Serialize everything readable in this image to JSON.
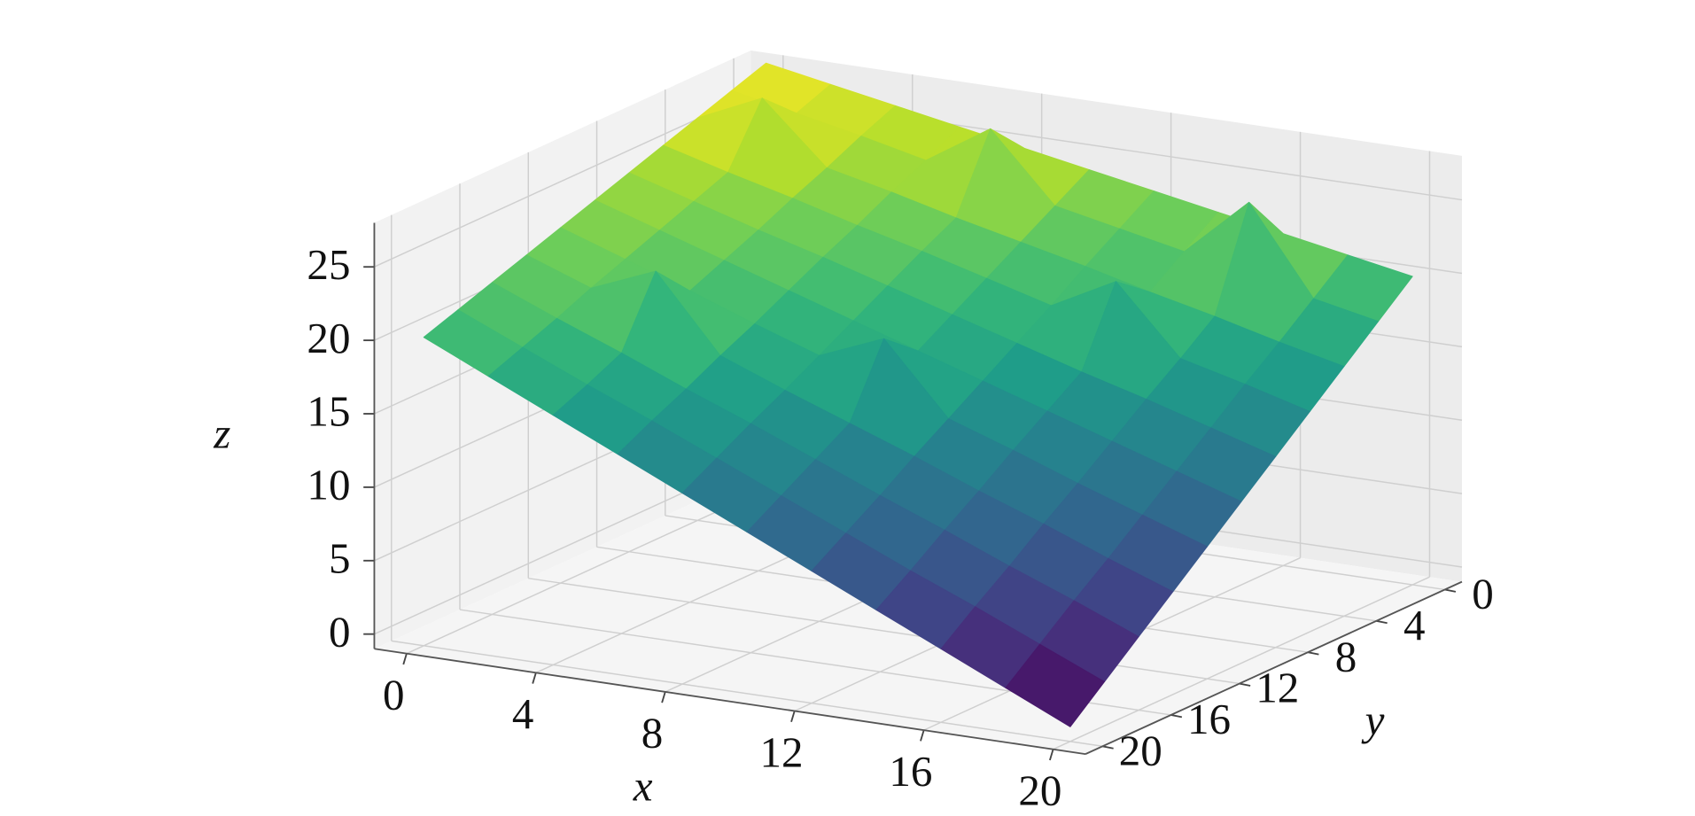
{
  "chart_data": {
    "type": "surface",
    "colormap": "viridis",
    "x": [
      0,
      2,
      4,
      6,
      8,
      10,
      12,
      14,
      16,
      18,
      20
    ],
    "y": [
      0,
      2,
      4,
      6,
      8,
      10,
      12,
      14,
      16,
      18,
      20
    ],
    "z": [
      [
        28,
        27.2,
        26.4,
        25.6,
        24.8,
        24,
        23.2,
        22.4,
        21.6,
        20.8,
        20
      ],
      [
        27.2,
        26.3,
        28.4,
        24.4,
        23.5,
        22.6,
        21.7,
        20.8,
        19.8,
        18.9,
        18
      ],
      [
        26.4,
        25.4,
        24.3,
        23.3,
        22.2,
        21.2,
        20.2,
        22.6,
        18.1,
        17,
        16
      ],
      [
        25.6,
        24.4,
        23.3,
        22.1,
        21,
        19.8,
        18.6,
        17.5,
        16.3,
        15.2,
        14
      ],
      [
        24.8,
        27.2,
        22.2,
        21,
        19.7,
        18.4,
        17.1,
        15.8,
        14.6,
        13.3,
        12
      ],
      [
        24,
        22.6,
        21.2,
        19.8,
        18.4,
        17,
        18.9,
        14.2,
        12.8,
        11.4,
        10
      ],
      [
        23.2,
        21.7,
        20.2,
        18.6,
        17.1,
        15.6,
        14.1,
        12.6,
        11,
        9.5,
        8
      ],
      [
        22.4,
        20.8,
        19.1,
        20.9,
        15.8,
        14.2,
        12.6,
        10.9,
        9.3,
        7.6,
        6
      ],
      [
        21.6,
        24.8,
        18.1,
        16.3,
        14.6,
        12.8,
        11,
        9.3,
        7.5,
        5.8,
        4
      ],
      [
        20.8,
        18.9,
        17,
        15.2,
        13.3,
        11.4,
        9.5,
        7.6,
        5.8,
        3.9,
        2
      ],
      [
        20,
        18,
        16,
        14,
        12,
        10,
        8,
        6,
        4,
        2,
        0
      ]
    ],
    "xlim": [
      -1,
      21
    ],
    "ylim": [
      -1,
      21
    ],
    "zlim": [
      -1,
      28
    ],
    "xticks": [
      0,
      4,
      8,
      12,
      16,
      20
    ],
    "yticks": [
      0,
      4,
      8,
      12,
      16,
      20
    ],
    "zticks": [
      0,
      5,
      10,
      15,
      20,
      25
    ],
    "xlabel": "x",
    "ylabel": "y",
    "zlabel": "z",
    "grid": true
  }
}
